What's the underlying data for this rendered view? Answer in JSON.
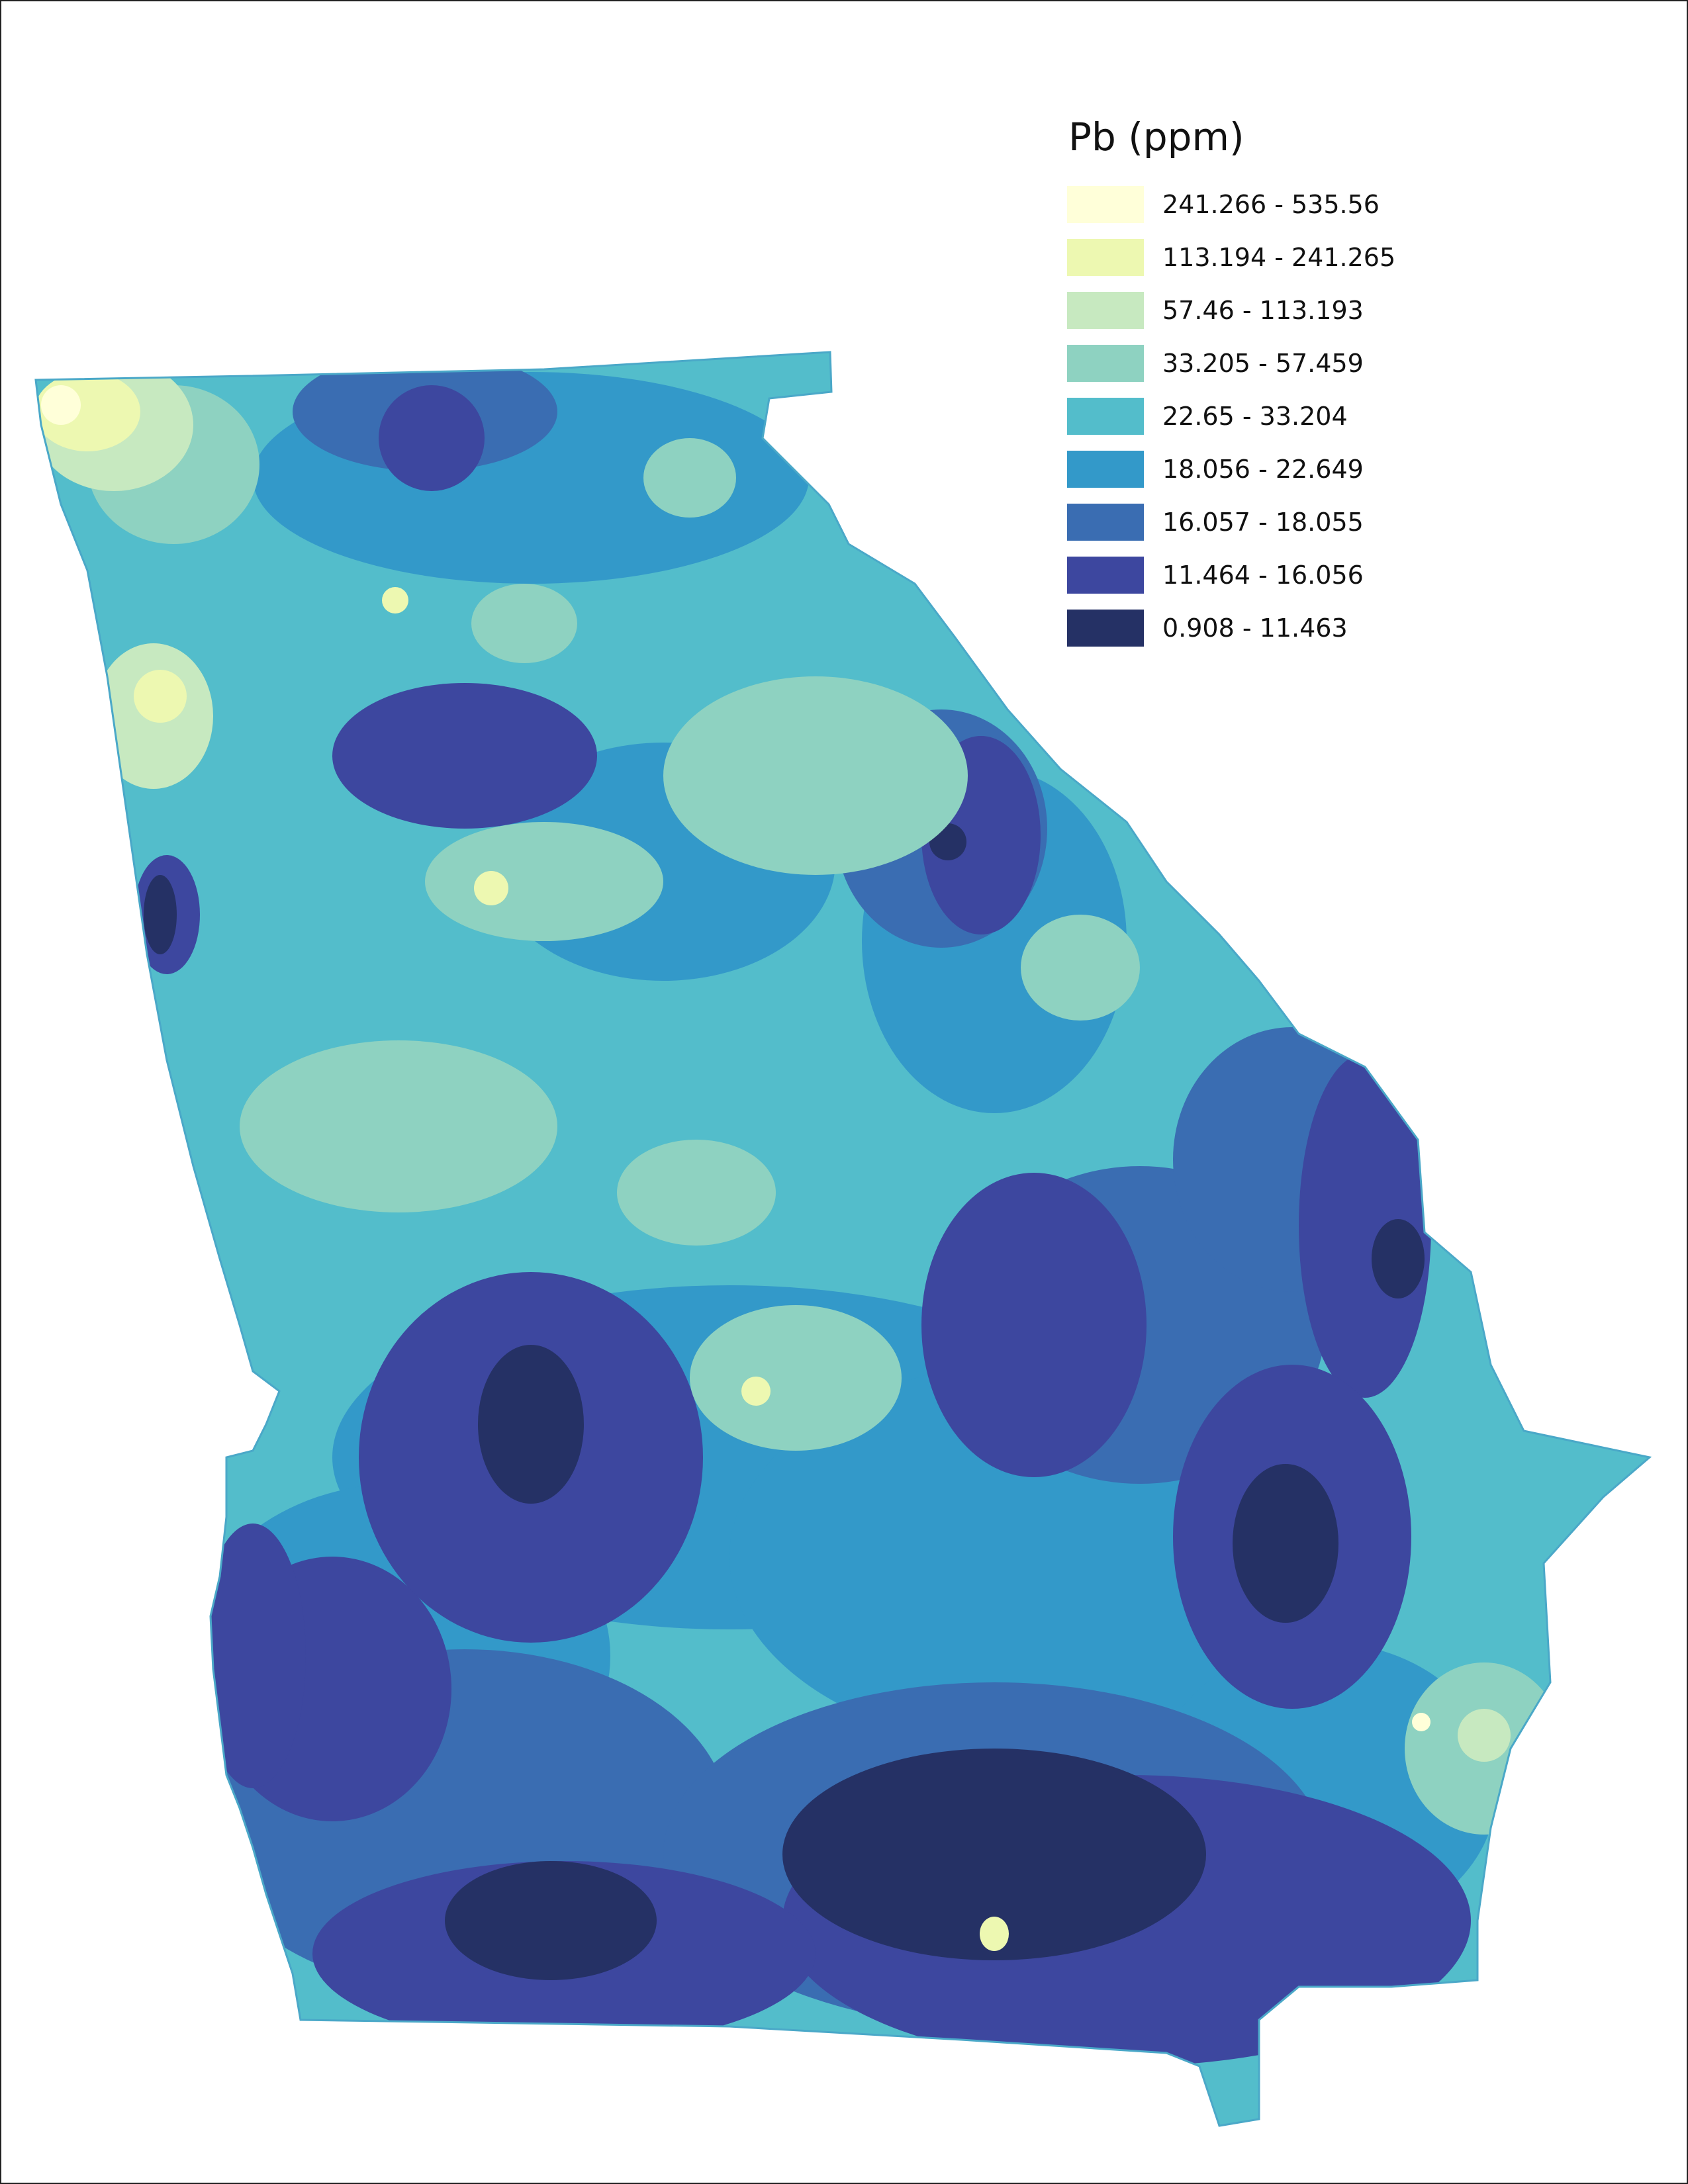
{
  "legend": {
    "title": "Pb (ppm)",
    "classes": [
      {
        "label": "241.266 - 535.56",
        "color": "#ffffd9"
      },
      {
        "label": "113.194 - 241.265",
        "color": "#edf8b1"
      },
      {
        "label": "57.46 - 113.193",
        "color": "#c7e9c0"
      },
      {
        "label": "33.205 - 57.459",
        "color": "#8ed2c1"
      },
      {
        "label": "22.65 - 33.204",
        "color": "#53bdcb"
      },
      {
        "label": "18.056 - 22.649",
        "color": "#3399c9"
      },
      {
        "label": "16.057 - 18.055",
        "color": "#3a6db2"
      },
      {
        "label": "11.464 - 16.056",
        "color": "#3d479f"
      },
      {
        "label": "0.908 - 11.463",
        "color": "#253165"
      }
    ]
  }
}
